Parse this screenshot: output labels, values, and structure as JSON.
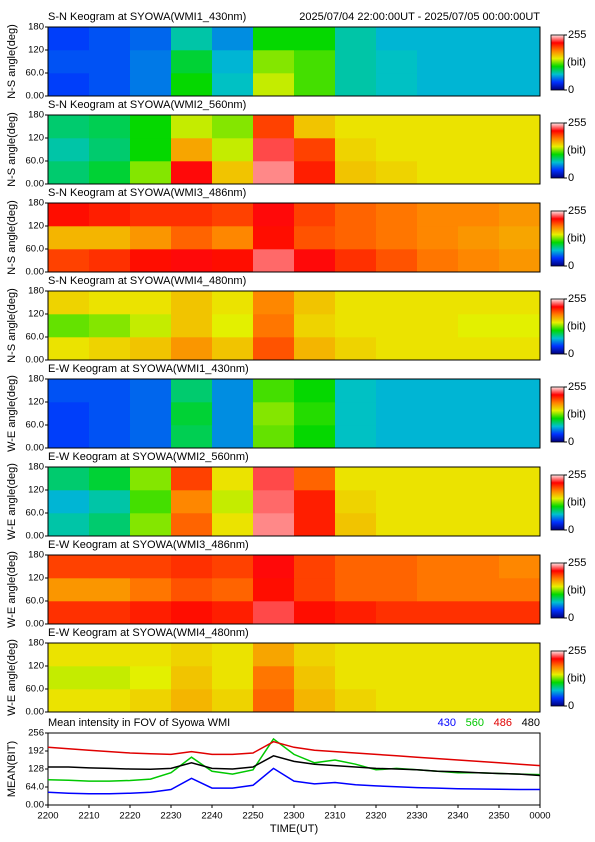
{
  "chart_data": [
    {
      "type": "heatmap",
      "title": "S-N Keogram at SYOWA(WMI1_430nm)",
      "subtitle": "2025/07/04 22:00:00UT - 2025/07/05 00:00:00UT",
      "ylabel": "N-S angle(deg)",
      "x_bins": [
        0,
        10,
        20,
        30,
        40,
        50,
        60,
        70,
        80,
        90,
        100,
        110,
        120
      ],
      "y_bins": [
        0,
        60,
        120,
        180
      ],
      "ylim": [
        0,
        180
      ],
      "yticks": [
        {
          "value": 0,
          "label": "0.00"
        },
        {
          "value": 60,
          "label": "60.0"
        },
        120,
        180
      ],
      "z": [
        [
          40,
          45,
          55,
          110,
          75,
          140,
          120,
          80,
          75,
          70,
          70,
          70
        ],
        [
          45,
          45,
          55,
          100,
          70,
          130,
          120,
          80,
          75,
          70,
          70,
          70
        ],
        [
          40,
          45,
          50,
          80,
          60,
          110,
          110,
          80,
          70,
          70,
          70,
          70
        ]
      ],
      "clim": [
        0,
        255
      ],
      "cticks": [
        0,
        255
      ],
      "clabel": "(bit)",
      "colormap": [
        "#00007a",
        "#0030ff",
        "#00c0d0",
        "#00d800",
        "#e8f000",
        "#ff8000",
        "#ff0000",
        "#ffe8e8"
      ]
    },
    {
      "type": "heatmap",
      "title": "S-N Keogram at SYOWA(WMI2_560nm)",
      "ylabel": "N-S angle(deg)",
      "x_bins": [
        0,
        10,
        20,
        30,
        40,
        50,
        60,
        70,
        80,
        90,
        100,
        110,
        120
      ],
      "y_bins": [
        0,
        60,
        120,
        180
      ],
      "ylim": [
        0,
        180
      ],
      "yticks": [
        {
          "value": 0,
          "label": "0.00"
        },
        {
          "value": 60,
          "label": "60.0"
        },
        120,
        180
      ],
      "z": [
        [
          90,
          100,
          130,
          220,
          160,
          240,
          210,
          160,
          155,
          150,
          150,
          150
        ],
        [
          80,
          90,
          110,
          170,
          140,
          230,
          200,
          155,
          150,
          150,
          150,
          150
        ],
        [
          90,
          95,
          110,
          140,
          130,
          200,
          160,
          150,
          150,
          150,
          150,
          150
        ]
      ],
      "clim": [
        0,
        255
      ],
      "cticks": [
        0,
        255
      ],
      "clabel": "(bit)",
      "colormap": [
        "#00007a",
        "#0030ff",
        "#00c0d0",
        "#00d800",
        "#e8f000",
        "#ff8000",
        "#ff0000",
        "#ffe8e8"
      ]
    },
    {
      "type": "heatmap",
      "title": "S-N Keogram at SYOWA(WMI3_486nm)",
      "ylabel": "N-S angle(deg)",
      "x_bins": [
        0,
        10,
        20,
        30,
        40,
        50,
        60,
        70,
        80,
        90,
        100,
        110,
        120
      ],
      "y_bins": [
        0,
        60,
        120,
        180
      ],
      "ylim": [
        0,
        180
      ],
      "yticks": [
        {
          "value": 0,
          "label": "0.00"
        },
        {
          "value": 60,
          "label": "60.0"
        },
        120,
        180
      ],
      "z": [
        [
          200,
          205,
          215,
          220,
          215,
          235,
          220,
          205,
          195,
          185,
          180,
          175
        ],
        [
          165,
          165,
          175,
          190,
          180,
          215,
          195,
          190,
          185,
          180,
          175,
          170
        ],
        [
          215,
          210,
          205,
          205,
          200,
          220,
          200,
          190,
          185,
          180,
          180,
          175
        ]
      ],
      "clim": [
        0,
        255
      ],
      "cticks": [
        0,
        255
      ],
      "clabel": "(bit)",
      "colormap": [
        "#00007a",
        "#0030ff",
        "#00c0d0",
        "#00d800",
        "#e8f000",
        "#ff8000",
        "#ff0000",
        "#ffe8e8"
      ]
    },
    {
      "type": "heatmap",
      "title": "S-N Keogram at SYOWA(WMI4_480nm)",
      "ylabel": "N-S angle(deg)",
      "x_bins": [
        0,
        10,
        20,
        30,
        40,
        50,
        60,
        70,
        80,
        90,
        100,
        110,
        120
      ],
      "y_bins": [
        0,
        60,
        120,
        180
      ],
      "ylim": [
        0,
        180
      ],
      "yticks": [
        {
          "value": 0,
          "label": "0.00"
        },
        {
          "value": 60,
          "label": "60.0"
        },
        120,
        180
      ],
      "z": [
        [
          150,
          155,
          160,
          175,
          160,
          195,
          165,
          155,
          150,
          150,
          150,
          150
        ],
        [
          125,
          130,
          140,
          160,
          145,
          185,
          155,
          150,
          150,
          150,
          145,
          145
        ],
        [
          155,
          150,
          150,
          160,
          150,
          180,
          160,
          150,
          150,
          150,
          150,
          150
        ]
      ],
      "clim": [
        0,
        255
      ],
      "cticks": [
        0,
        255
      ],
      "clabel": "(bit)",
      "colormap": [
        "#00007a",
        "#0030ff",
        "#00c0d0",
        "#00d800",
        "#e8f000",
        "#ff8000",
        "#ff0000",
        "#ffe8e8"
      ]
    },
    {
      "type": "heatmap",
      "title": "E-W Keogram at SYOWA(WMI1_430nm)",
      "ylabel": "W-E angle(deg)",
      "x_bins": [
        0,
        10,
        20,
        30,
        40,
        50,
        60,
        70,
        80,
        90,
        100,
        110,
        120
      ],
      "y_bins": [
        0,
        60,
        120,
        180
      ],
      "ylim": [
        0,
        180
      ],
      "yticks": [
        {
          "value": 0,
          "label": "0.00"
        },
        {
          "value": 60,
          "label": "60.0"
        },
        120,
        180
      ],
      "z": [
        [
          40,
          45,
          50,
          95,
          60,
          125,
          110,
          75,
          70,
          70,
          70,
          70
        ],
        [
          40,
          45,
          50,
          100,
          60,
          130,
          115,
          75,
          70,
          70,
          70,
          70
        ],
        [
          45,
          45,
          50,
          90,
          60,
          120,
          110,
          75,
          70,
          70,
          70,
          70
        ]
      ],
      "clim": [
        0,
        255
      ],
      "cticks": [
        0,
        255
      ],
      "clabel": "(bit)",
      "colormap": [
        "#00007a",
        "#0030ff",
        "#00c0d0",
        "#00d800",
        "#e8f000",
        "#ff8000",
        "#ff0000",
        "#ffe8e8"
      ]
    },
    {
      "type": "heatmap",
      "title": "E-W Keogram at SYOWA(WMI2_560nm)",
      "ylabel": "W-E angle(deg)",
      "x_bins": [
        0,
        10,
        20,
        30,
        40,
        50,
        60,
        70,
        80,
        90,
        100,
        110,
        120
      ],
      "y_bins": [
        0,
        60,
        120,
        180
      ],
      "ylim": [
        0,
        180
      ],
      "yticks": [
        {
          "value": 0,
          "label": "0.00"
        },
        {
          "value": 60,
          "label": "60.0"
        },
        120,
        180
      ],
      "z": [
        [
          80,
          90,
          130,
          190,
          150,
          240,
          210,
          160,
          150,
          150,
          150,
          150
        ],
        [
          70,
          80,
          120,
          180,
          140,
          235,
          210,
          155,
          150,
          150,
          150,
          150
        ],
        [
          90,
          100,
          130,
          200,
          150,
          230,
          190,
          150,
          150,
          150,
          150,
          150
        ]
      ],
      "clim": [
        0,
        255
      ],
      "cticks": [
        0,
        255
      ],
      "clabel": "(bit)",
      "colormap": [
        "#00007a",
        "#0030ff",
        "#00c0d0",
        "#00d800",
        "#e8f000",
        "#ff8000",
        "#ff0000",
        "#ffe8e8"
      ]
    },
    {
      "type": "heatmap",
      "title": "E-W Keogram at SYOWA(WMI3_486nm)",
      "ylabel": "W-E angle(deg)",
      "x_bins": [
        0,
        10,
        20,
        30,
        40,
        50,
        60,
        70,
        80,
        90,
        100,
        110,
        120
      ],
      "y_bins": [
        0,
        60,
        120,
        180
      ],
      "ylim": [
        0,
        180
      ],
      "yticks": [
        {
          "value": 0,
          "label": "0.00"
        },
        {
          "value": 60,
          "label": "60.0"
        },
        120,
        180
      ],
      "z": [
        [
          205,
          205,
          210,
          215,
          210,
          230,
          215,
          210,
          205,
          205,
          205,
          205
        ],
        [
          175,
          175,
          185,
          195,
          190,
          215,
          200,
          190,
          190,
          185,
          185,
          185
        ],
        [
          200,
          200,
          200,
          205,
          200,
          220,
          200,
          190,
          190,
          185,
          185,
          180
        ]
      ],
      "clim": [
        0,
        255
      ],
      "cticks": [
        0,
        255
      ],
      "clabel": "(bit)",
      "colormap": [
        "#00007a",
        "#0030ff",
        "#00c0d0",
        "#00d800",
        "#e8f000",
        "#ff8000",
        "#ff0000",
        "#ffe8e8"
      ]
    },
    {
      "type": "heatmap",
      "title": "E-W Keogram at SYOWA(WMI4_480nm)",
      "ylabel": "W-E angle(deg)",
      "x_bins": [
        0,
        10,
        20,
        30,
        40,
        50,
        60,
        70,
        80,
        90,
        100,
        110,
        120
      ],
      "y_bins": [
        0,
        60,
        120,
        180
      ],
      "ylim": [
        0,
        180
      ],
      "yticks": [
        {
          "value": 0,
          "label": "0.00"
        },
        {
          "value": 60,
          "label": "60.0"
        },
        120,
        180
      ],
      "z": [
        [
          150,
          150,
          155,
          165,
          155,
          190,
          165,
          155,
          150,
          150,
          150,
          150
        ],
        [
          140,
          140,
          145,
          160,
          150,
          185,
          160,
          150,
          150,
          150,
          150,
          150
        ],
        [
          150,
          150,
          150,
          155,
          150,
          170,
          155,
          150,
          150,
          150,
          150,
          150
        ]
      ],
      "clim": [
        0,
        255
      ],
      "cticks": [
        0,
        255
      ],
      "clabel": "(bit)",
      "colormap": [
        "#00007a",
        "#0030ff",
        "#00c0d0",
        "#00d800",
        "#e8f000",
        "#ff8000",
        "#ff0000",
        "#ffe8e8"
      ]
    },
    {
      "type": "line",
      "title": "Mean intensity in FOV of Syowa WMI",
      "ylabel": "MEAN(BIT)",
      "xlabel": "TIME(UT)",
      "x": [
        0,
        5,
        10,
        15,
        20,
        25,
        30,
        35,
        40,
        45,
        50,
        55,
        60,
        65,
        70,
        75,
        80,
        85,
        90,
        95,
        100,
        105,
        110,
        115,
        120
      ],
      "xlim": [
        0,
        120
      ],
      "xticks": [
        {
          "value": 0,
          "label": "2200"
        },
        {
          "value": 10,
          "label": "2210"
        },
        {
          "value": 20,
          "label": "2220"
        },
        {
          "value": 30,
          "label": "2230"
        },
        {
          "value": 40,
          "label": "2240"
        },
        {
          "value": 50,
          "label": "2250"
        },
        {
          "value": 60,
          "label": "2300"
        },
        {
          "value": 70,
          "label": "2310"
        },
        {
          "value": 80,
          "label": "2320"
        },
        {
          "value": 90,
          "label": "2330"
        },
        {
          "value": 100,
          "label": "2340"
        },
        {
          "value": 110,
          "label": "2350"
        },
        {
          "value": 120,
          "label": "0000"
        }
      ],
      "ylim": [
        0,
        256
      ],
      "yticks": [
        {
          "value": 0,
          "label": "0.00"
        },
        {
          "value": 64,
          "label": "64.0"
        },
        128,
        192,
        256
      ],
      "series": [
        {
          "name": "430",
          "color": "#0000ff",
          "values": [
            45,
            42,
            40,
            40,
            42,
            45,
            55,
            95,
            60,
            60,
            70,
            130,
            85,
            75,
            80,
            72,
            68,
            65,
            62,
            60,
            58,
            57,
            56,
            55,
            55
          ]
        },
        {
          "name": "560",
          "color": "#00c800",
          "values": [
            90,
            88,
            85,
            85,
            87,
            92,
            115,
            170,
            120,
            110,
            125,
            235,
            180,
            150,
            160,
            145,
            125,
            130,
            125,
            120,
            115,
            115,
            112,
            110,
            108
          ]
        },
        {
          "name": "486",
          "color": "#e00000",
          "values": [
            205,
            200,
            195,
            190,
            185,
            182,
            180,
            190,
            180,
            180,
            185,
            225,
            205,
            195,
            190,
            185,
            180,
            175,
            170,
            165,
            160,
            155,
            150,
            145,
            140
          ]
        },
        {
          "name": "480",
          "color": "#000000",
          "values": [
            135,
            135,
            132,
            130,
            128,
            127,
            130,
            150,
            130,
            128,
            135,
            175,
            155,
            145,
            140,
            135,
            130,
            128,
            125,
            120,
            118,
            115,
            112,
            110,
            105
          ]
        }
      ]
    }
  ]
}
